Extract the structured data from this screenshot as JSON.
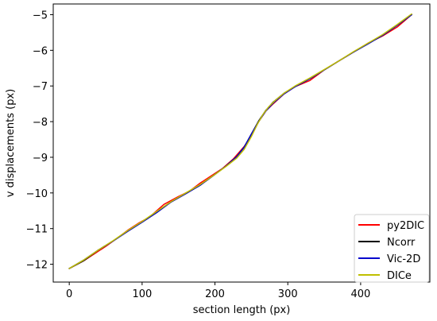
{
  "chart_data": {
    "type": "line",
    "title": "",
    "xlabel": "section length (px)",
    "ylabel": "v displacements (px)",
    "xlim": [
      -22,
      495
    ],
    "ylim": [
      -12.5,
      -4.7
    ],
    "xticks": [
      0,
      100,
      200,
      300,
      400
    ],
    "yticks": [
      -12,
      -11,
      -10,
      -9,
      -8,
      -7,
      -6,
      -5
    ],
    "tick_labels_x": [
      "0",
      "100",
      "200",
      "300",
      "400"
    ],
    "tick_labels_y": [
      "−12",
      "−11",
      "−10",
      "−9",
      "−8",
      "−7",
      "−6",
      "−5"
    ],
    "grid": false,
    "legend_position": "lower-right",
    "series": [
      {
        "name": "py2DIC",
        "color": "#ff0000",
        "x": [
          0,
          20,
          35,
          50,
          65,
          80,
          95,
          110,
          130,
          150,
          165,
          180,
          195,
          210,
          225,
          240,
          250,
          260,
          270,
          280,
          295,
          310,
          330,
          350,
          370,
          390,
          410,
          430,
          450,
          470
        ],
        "y": [
          -12.12,
          -11.9,
          -11.7,
          -11.5,
          -11.28,
          -11.05,
          -10.85,
          -10.68,
          -10.32,
          -10.1,
          -9.95,
          -9.72,
          -9.52,
          -9.32,
          -9.05,
          -8.7,
          -8.4,
          -8.0,
          -7.7,
          -7.5,
          -7.22,
          -7.02,
          -6.85,
          -6.55,
          -6.3,
          -6.05,
          -5.8,
          -5.6,
          -5.35,
          -5.0
        ]
      },
      {
        "name": "Ncorr",
        "color": "#000000",
        "x": [
          0,
          20,
          40,
          60,
          80,
          100,
          120,
          140,
          160,
          180,
          200,
          215,
          230,
          240,
          250,
          260,
          270,
          280,
          295,
          310,
          330,
          350,
          370,
          390,
          410,
          430,
          450,
          470
        ],
        "y": [
          -12.12,
          -11.9,
          -11.6,
          -11.35,
          -11.08,
          -10.82,
          -10.55,
          -10.25,
          -10.02,
          -9.78,
          -9.48,
          -9.25,
          -8.98,
          -8.72,
          -8.35,
          -7.98,
          -7.68,
          -7.45,
          -7.2,
          -7.02,
          -6.8,
          -6.55,
          -6.3,
          -6.05,
          -5.82,
          -5.58,
          -5.3,
          -5.0
        ]
      },
      {
        "name": "Vic-2D",
        "color": "#0000cc",
        "x": [
          0,
          20,
          40,
          60,
          80,
          100,
          120,
          140,
          160,
          180,
          200,
          215,
          230,
          240,
          250,
          260,
          270,
          280,
          295,
          310,
          330,
          350,
          370,
          390,
          410,
          430,
          450,
          470
        ],
        "y": [
          -12.12,
          -11.88,
          -11.6,
          -11.35,
          -11.08,
          -10.82,
          -10.55,
          -10.25,
          -10.02,
          -9.78,
          -9.48,
          -9.25,
          -8.98,
          -8.72,
          -8.35,
          -8.0,
          -7.7,
          -7.48,
          -7.22,
          -7.02,
          -6.8,
          -6.55,
          -6.3,
          -6.05,
          -5.82,
          -5.58,
          -5.3,
          -5.0
        ]
      },
      {
        "name": "DICe",
        "color": "#bfbf00",
        "x": [
          0,
          20,
          40,
          60,
          80,
          100,
          120,
          140,
          160,
          180,
          200,
          215,
          230,
          240,
          250,
          258,
          266,
          274,
          282,
          295,
          310,
          330,
          350,
          370,
          390,
          410,
          430,
          450,
          470
        ],
        "y": [
          -12.12,
          -11.88,
          -11.6,
          -11.34,
          -11.06,
          -10.8,
          -10.52,
          -10.24,
          -10.0,
          -9.76,
          -9.48,
          -9.26,
          -9.02,
          -8.78,
          -8.42,
          -8.08,
          -7.8,
          -7.58,
          -7.42,
          -7.2,
          -7.0,
          -6.78,
          -6.54,
          -6.3,
          -6.04,
          -5.8,
          -5.56,
          -5.28,
          -4.98
        ]
      }
    ]
  }
}
